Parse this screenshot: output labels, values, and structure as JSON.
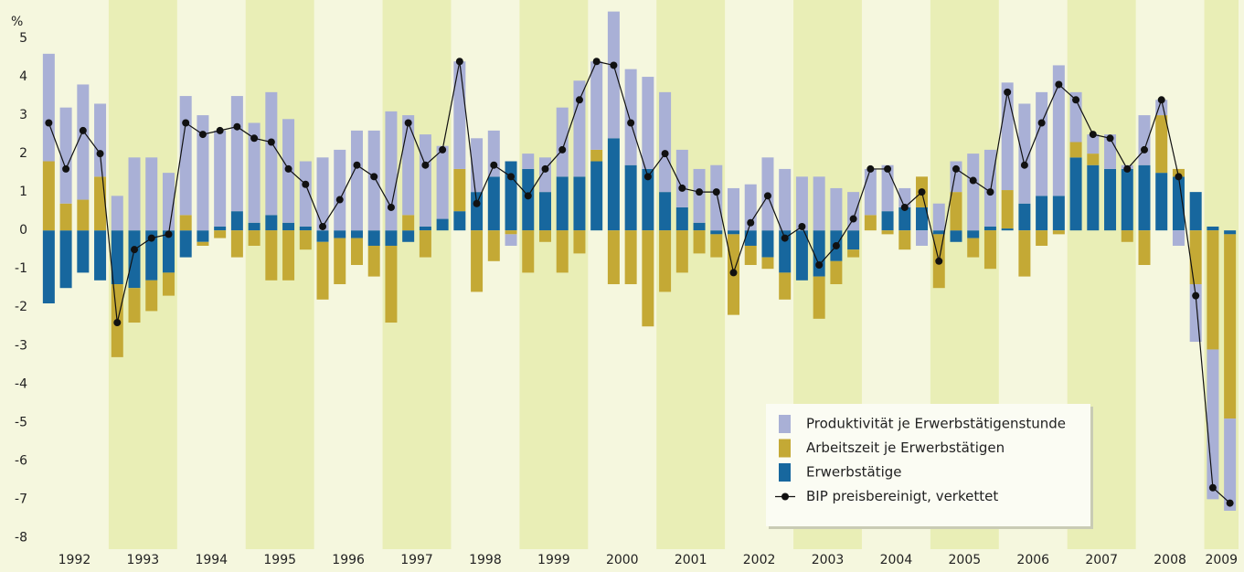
{
  "chart_data": {
    "type": "bar",
    "y_label": "%",
    "years": [
      "1992",
      "1993",
      "1994",
      "1995",
      "1996",
      "1997",
      "1998",
      "1999",
      "2000",
      "2001",
      "2002",
      "2003",
      "2004",
      "2005",
      "2006",
      "2007",
      "2008",
      "2009"
    ],
    "ylim": [
      -8.3,
      6
    ],
    "yticks": [
      -8,
      -7,
      -6,
      -5,
      -4,
      -3,
      -2,
      -1,
      0,
      1,
      2,
      3,
      4,
      5
    ],
    "legend": "lower right",
    "series": [
      {
        "name": "Produktivität je Erwerbstätigenstunde",
        "color": "#a9b0d6",
        "type": "bar",
        "values": [
          2.8,
          2.5,
          3.0,
          1.9,
          0.9,
          1.9,
          1.9,
          1.5,
          3.1,
          3.0,
          2.5,
          3.0,
          2.6,
          3.2,
          2.7,
          1.7,
          1.9,
          2.1,
          2.6,
          2.6,
          3.1,
          2.6,
          2.4,
          1.9,
          2.8,
          1.4,
          1.2,
          -0.3,
          0.4,
          0.9,
          1.8,
          2.5,
          2.3,
          3.3,
          2.5,
          2.4,
          2.6,
          1.5,
          1.4,
          1.7,
          1.1,
          1.2,
          1.9,
          1.6,
          1.4,
          1.4,
          1.1,
          1.0,
          1.2,
          1.2,
          0.5,
          -0.4,
          0.7,
          0.8,
          2.0,
          2.0,
          2.8,
          2.6,
          2.7,
          3.4,
          1.3,
          0.5,
          0.9,
          0.1,
          1.3,
          0.4,
          -0.4,
          -1.5,
          -3.9,
          -2.4
        ]
      },
      {
        "name": "Arbeitszeit je Erwerbstätigen",
        "color": "#c4a935",
        "type": "bar",
        "values": [
          1.8,
          0.7,
          0.8,
          1.4,
          -1.9,
          -0.9,
          -0.8,
          -0.6,
          0.4,
          -0.1,
          -0.2,
          -0.7,
          -0.4,
          -1.3,
          -1.3,
          -0.5,
          -1.5,
          -1.2,
          -0.7,
          -0.8,
          -2.0,
          0.4,
          -0.7,
          0,
          1.1,
          -1.6,
          -0.8,
          -0.1,
          -1.1,
          -0.3,
          -1.1,
          -0.6,
          0.3,
          -1.4,
          -1.4,
          -2.5,
          -1.6,
          -1.1,
          -0.6,
          -0.6,
          -2.1,
          -0.5,
          -0.3,
          -0.7,
          0,
          -1.1,
          -0.6,
          -0.2,
          0.4,
          -0.1,
          -0.5,
          0.8,
          -1.4,
          1.0,
          -0.5,
          -1.0,
          1.0,
          -1.2,
          -0.4,
          -0.1,
          0.4,
          0.3,
          0,
          -0.3,
          -0.9,
          1.5,
          0.2,
          -1.4,
          -3.1,
          -4.8
        ]
      },
      {
        "name": "Erwerbstätige",
        "color": "#17679e",
        "type": "bar",
        "values": [
          -1.9,
          -1.5,
          -1.1,
          -1.3,
          -1.4,
          -1.5,
          -1.3,
          -1.1,
          -0.7,
          -0.3,
          0.1,
          0.5,
          0.2,
          0.4,
          0.2,
          0.1,
          -0.3,
          -0.2,
          -0.2,
          -0.4,
          -0.4,
          -0.3,
          0.1,
          0.3,
          0.5,
          1.0,
          1.4,
          1.8,
          1.6,
          1.0,
          1.4,
          1.4,
          1.8,
          2.4,
          1.7,
          1.6,
          1.0,
          0.6,
          0.2,
          -0.1,
          -0.1,
          -0.4,
          -0.7,
          -1.1,
          -1.3,
          -1.2,
          -0.8,
          -0.5,
          0.0,
          0.5,
          0.6,
          0.6,
          -0.1,
          -0.3,
          -0.2,
          0.1,
          0.05,
          0.7,
          0.9,
          0.9,
          1.9,
          1.7,
          1.6,
          1.6,
          1.7,
          1.5,
          1.4,
          1.0,
          0.1,
          -0.1
        ]
      },
      {
        "name": "BIP preisbereinigt, verkettet",
        "color": "#111111",
        "type": "line",
        "values": [
          2.8,
          1.6,
          2.6,
          2.0,
          -2.4,
          -0.5,
          -0.2,
          -0.1,
          2.8,
          2.5,
          2.6,
          2.7,
          2.4,
          2.3,
          1.6,
          1.2,
          0.1,
          0.8,
          1.7,
          1.4,
          0.6,
          2.8,
          1.7,
          2.1,
          4.4,
          0.7,
          1.7,
          1.4,
          0.9,
          1.6,
          2.1,
          3.4,
          4.4,
          4.3,
          2.8,
          1.4,
          2.0,
          1.1,
          1.0,
          1.0,
          -1.1,
          0.2,
          0.9,
          -0.2,
          0.1,
          -0.9,
          -0.4,
          0.3,
          1.6,
          1.6,
          0.6,
          1.0,
          -0.8,
          1.6,
          1.3,
          1.0,
          3.6,
          1.7,
          2.8,
          3.8,
          3.4,
          2.5,
          2.4,
          1.6,
          2.1,
          3.4,
          1.4,
          -1.7,
          -6.7,
          -7.1
        ]
      }
    ]
  }
}
